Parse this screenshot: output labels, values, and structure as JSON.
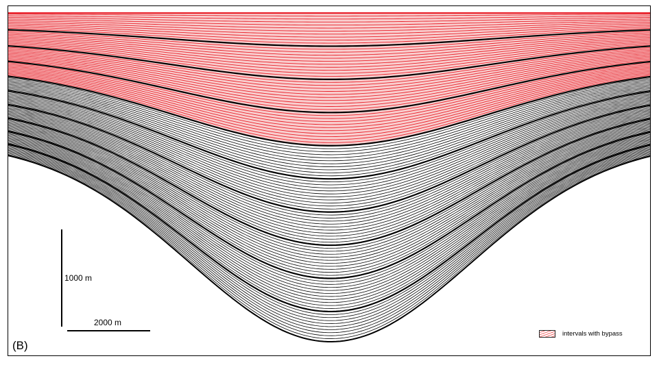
{
  "figure": {
    "panel_label": "(B)",
    "scale_vertical": "1000 m",
    "scale_horizontal": "2000 m",
    "legend": {
      "label": "intervals with bypass",
      "swatch_color": "#f26a6a"
    },
    "colors": {
      "line": "#000000",
      "bypass_fill": "#f4a6a6",
      "bypass_line": "#e8202a",
      "background": "#ffffff"
    }
  }
}
